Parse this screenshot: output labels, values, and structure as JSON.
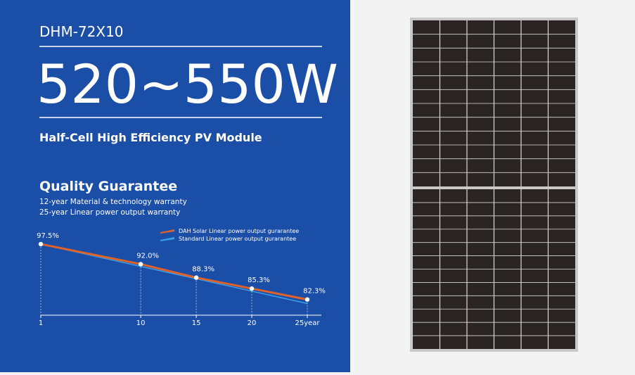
{
  "header": {
    "model": "DHM-72X10",
    "power": "520~550W",
    "subtitle": "Half-Cell High Efficiency PV Module"
  },
  "guarantee": {
    "title": "Quality Guarantee",
    "lines": [
      "12-year Material & technology warranty",
      "25-year Linear power output warranty"
    ]
  },
  "chart_data": {
    "type": "line",
    "x": [
      1,
      10,
      15,
      20,
      25
    ],
    "series": [
      {
        "name": "DAH Solar Linear power output gurarantee",
        "color": "#e0622a",
        "x": [
          1,
          10,
          15,
          20,
          25
        ],
        "values": [
          97.5,
          92.0,
          88.3,
          85.3,
          82.3
        ],
        "value_labels": [
          "97.5%",
          "92.0%",
          "88.3%",
          "85.3%",
          "82.3%"
        ]
      },
      {
        "name": "Standard Linear power output gurarantee",
        "color": "#3aa0e8",
        "x": [
          1,
          25
        ],
        "values": [
          97.5,
          81.2
        ]
      }
    ],
    "xlim": [
      1,
      25
    ],
    "ylim": [
      78,
      100
    ],
    "xticks": [
      1,
      10,
      15,
      20,
      {
        "value": 25,
        "label": "25year"
      }
    ]
  }
}
